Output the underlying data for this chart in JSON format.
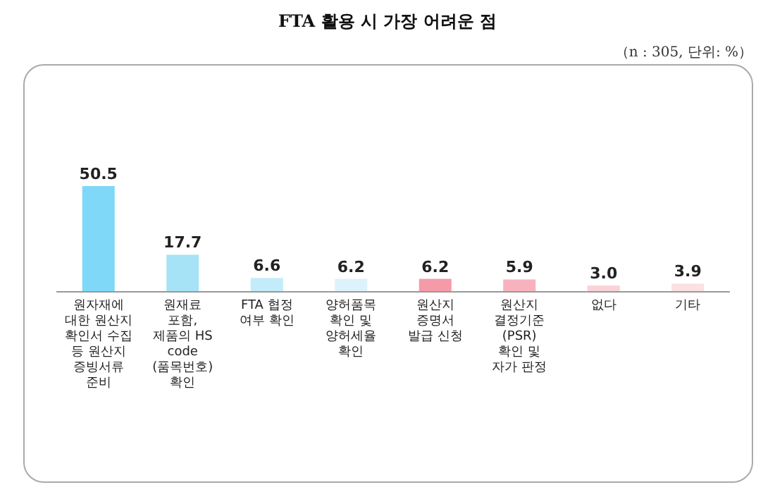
{
  "chart_data": {
    "type": "bar",
    "title": "FTA 활용 시 가장 어려운 점",
    "subtitle": "（n : 305, 단위: %）",
    "categories": [
      "원자재에\n대한 원산지\n확인서 수집\n등 원산지\n증빙서류\n준비",
      "원재료\n포함,\n제품의 HS\ncode\n(품목번호)\n확인",
      "FTA 협정\n여부 확인",
      "양허품목\n확인 및\n양허세율\n확인",
      "원산지\n증명서\n발급 신청",
      "원산지\n결정기준\n(PSR)\n확인 및\n자가 판정",
      "없다",
      "기타"
    ],
    "values": [
      50.5,
      17.7,
      6.6,
      6.2,
      6.2,
      5.9,
      3.0,
      3.9
    ],
    "colors": [
      "#7fd8f8",
      "#a6e3f7",
      "#c2ecfa",
      "#dcf3fb",
      "#f59aa8",
      "#f7b3bd",
      "#f9d3d8",
      "#fbe1e4"
    ],
    "value_labels": [
      "50.5",
      "17.7",
      "6.6",
      "6.2",
      "6.2",
      "5.9",
      "3.0",
      "3.9"
    ]
  }
}
